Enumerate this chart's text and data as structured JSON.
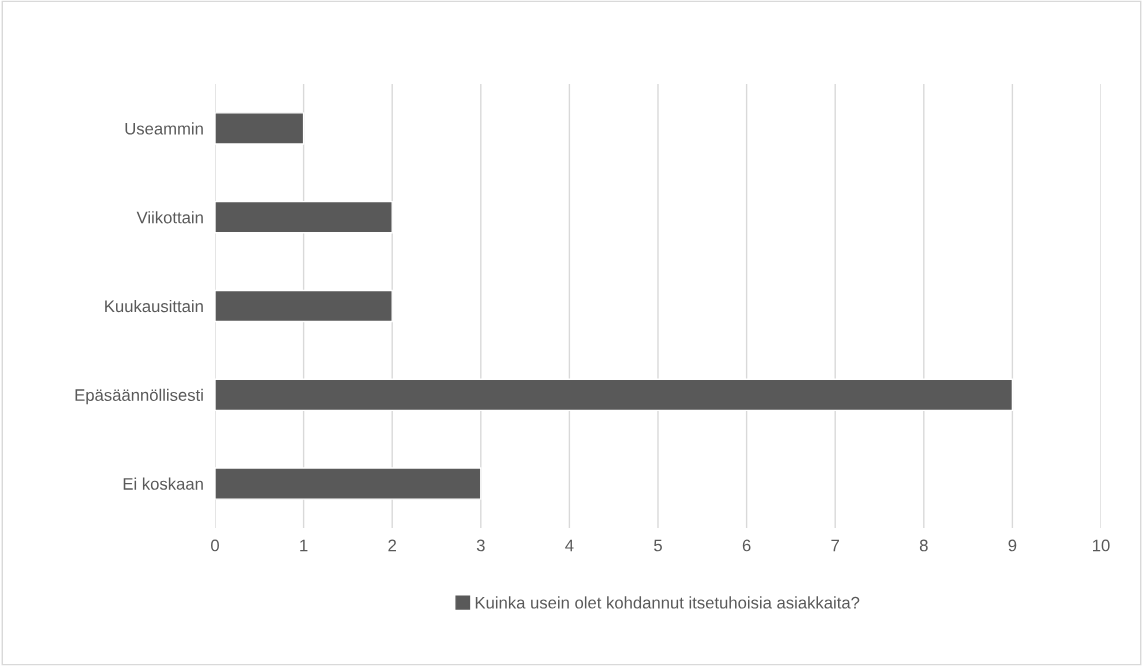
{
  "chart_data": {
    "type": "bar",
    "orientation": "horizontal",
    "categories": [
      "Useammin",
      "Viikottain",
      "Kuukausittain",
      "Epäsäännöllisesti",
      "Ei koskaan"
    ],
    "series": [
      {
        "name": "Kuinka usein olet kohdannut itsetuhoisia asiakkaita?",
        "color": "#595959",
        "values": [
          1,
          2,
          2,
          9,
          3
        ]
      }
    ],
    "xlim": [
      0,
      10
    ],
    "xticks": [
      0,
      1,
      2,
      3,
      4,
      5,
      6,
      7,
      8,
      9,
      10
    ],
    "grid": "x",
    "legend": "bottom"
  }
}
